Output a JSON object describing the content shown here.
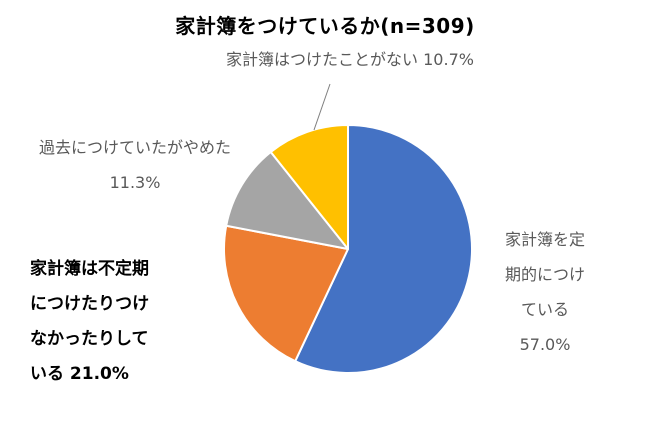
{
  "title": "家計簿をつけているか(n=309)",
  "chart_data": {
    "type": "pie",
    "title": "家計簿をつけているか(n=309)",
    "categories": [
      "家計簿を定期的につけている",
      "家計簿は不定期につけたりつけなかったりしている",
      "過去につけていたがやめた",
      "家計簿はつけたことがない"
    ],
    "values": [
      57.0,
      21.0,
      11.3,
      10.7
    ],
    "unit": "%",
    "colors": [
      "#4472C4",
      "#ED7D31",
      "#A5A5A5",
      "#FFC000"
    ],
    "start_angle": "12-oclock",
    "direction": "clockwise",
    "legend": "none",
    "labels_outside": true
  },
  "labels": {
    "never": [
      "家計簿はつけたことがない  10.7%"
    ],
    "stopped": [
      "過去につけていたがやめた",
      "11.3%"
    ],
    "irregular": [
      "家計簿は不定期",
      "につけたりつけ",
      "なかったりして",
      "いる 21.0%"
    ],
    "regular": [
      "家計簿を定",
      "期的につけ",
      "ている",
      "57.0%"
    ]
  }
}
